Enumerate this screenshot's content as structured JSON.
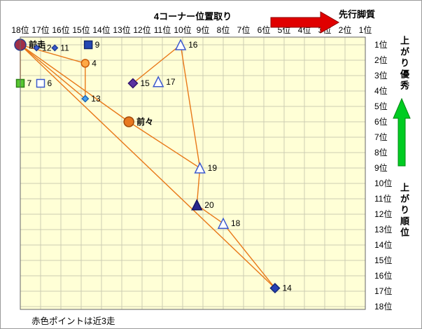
{
  "chart_data": {
    "type": "scatter",
    "title": "4コーナー位置取り",
    "x_labels": [
      "18位",
      "17位",
      "16位",
      "15位",
      "14位",
      "13位",
      "12位",
      "11位",
      "10位",
      "9位",
      "8位",
      "7位",
      "6位",
      "5位",
      "4位",
      "3位",
      "2位",
      "1位"
    ],
    "y_labels": [
      "1位",
      "2位",
      "3位",
      "4位",
      "5位",
      "6位",
      "7位",
      "8位",
      "9位",
      "10位",
      "11位",
      "12位",
      "13位",
      "14位",
      "15位",
      "16位",
      "17位",
      "18位"
    ],
    "x_range_note": "corner position 18位(left) to 1位(right)",
    "y_range_note": "agari rank 1位(top) to 18位(bottom)",
    "grid": true,
    "points": [
      {
        "id": "zenso",
        "label": "前走",
        "pos": 18,
        "rank": 1,
        "shape": "circle",
        "fill": "#A03048",
        "stroke": "#283C8C",
        "size": 8,
        "bold": true
      },
      {
        "id": "h12",
        "label": "12",
        "pos": 17.2,
        "rank": 1.2,
        "shape": "diamond",
        "fill": "#3C5ACD",
        "stroke": "#1E3C96",
        "size": 4
      },
      {
        "id": "h11",
        "label": "11",
        "pos": 16.3,
        "rank": 1.2,
        "shape": "diamond",
        "fill": "#3C5ACD",
        "stroke": "#1E3C96",
        "size": 4
      },
      {
        "id": "h9",
        "label": "9",
        "pos": 14.65,
        "rank": 1,
        "shape": "square",
        "fill": "#2346B4",
        "stroke": "#14286E",
        "size": 5.5
      },
      {
        "id": "h4",
        "label": "4",
        "pos": 14.8,
        "rank": 2.2,
        "shape": "circle",
        "fill": "#FFA845",
        "stroke": "#C85A0A",
        "size": 5.5
      },
      {
        "id": "h7",
        "label": "7",
        "pos": 18,
        "rank": 3.5,
        "shape": "square",
        "fill": "#57C832",
        "stroke": "#2E8216",
        "size": 5.5
      },
      {
        "id": "h6",
        "label": "6",
        "pos": 17,
        "rank": 3.5,
        "shape": "square_open",
        "fill": "#FFFFFF",
        "stroke": "#3C5ACD",
        "size": 5.5
      },
      {
        "id": "h15",
        "label": "15",
        "pos": 12.45,
        "rank": 3.5,
        "shape": "diamond",
        "fill": "#5A32A0",
        "stroke": "#32146E",
        "size": 6.5
      },
      {
        "id": "h17",
        "label": "17",
        "pos": 11.2,
        "rank": 3.4,
        "shape": "triangle_open",
        "fill": "#FFFFFF",
        "stroke": "#3C5ACD",
        "size": 7
      },
      {
        "id": "h16",
        "label": "16",
        "pos": 10.1,
        "rank": 1,
        "shape": "triangle_open",
        "fill": "#FFFFFF",
        "stroke": "#3C5ACD",
        "size": 7
      },
      {
        "id": "h13",
        "label": "13",
        "pos": 14.8,
        "rank": 4.5,
        "shape": "diamond",
        "fill": "#46A0F0",
        "stroke": "#1E64B4",
        "size": 4.5
      },
      {
        "id": "zenzen",
        "label": "前々",
        "pos": 12.65,
        "rank": 6,
        "shape": "circle",
        "fill": "#E87820",
        "stroke": "#A04A0A",
        "size": 7,
        "bold": true
      },
      {
        "id": "h19",
        "label": "19",
        "pos": 9.15,
        "rank": 9,
        "shape": "triangle_open",
        "fill": "#FFFFFF",
        "stroke": "#3C5ACD",
        "size": 7
      },
      {
        "id": "h20",
        "label": "20",
        "pos": 9.3,
        "rank": 11.4,
        "shape": "triangle",
        "fill": "#28288C",
        "stroke": "#141464",
        "size": 7
      },
      {
        "id": "h18",
        "label": "18",
        "pos": 8,
        "rank": 12.6,
        "shape": "triangle_open",
        "fill": "#FFFFFF",
        "stroke": "#3C5ACD",
        "size": 7
      },
      {
        "id": "h14",
        "label": "14",
        "pos": 5.45,
        "rank": 16.8,
        "shape": "diamond",
        "fill": "#2841B4",
        "stroke": "#142878",
        "size": 6.5
      }
    ],
    "segments": [
      [
        "zenso",
        "h7"
      ],
      [
        "zenso",
        "h4"
      ],
      [
        "zenso",
        "h13"
      ],
      [
        "zenso",
        "zenzen"
      ],
      [
        "zenso",
        "h14"
      ],
      [
        "h4",
        "h13"
      ],
      [
        "zenzen",
        "h19"
      ],
      [
        "h19",
        "h20"
      ],
      [
        "h20",
        "h18"
      ],
      [
        "h18",
        "h14"
      ],
      [
        "h15",
        "h16"
      ],
      [
        "h16",
        "h19"
      ]
    ]
  },
  "annotations": {
    "front_label": "先行脚質",
    "right_top_label": "上がり優秀",
    "right_bottom_label": "上がり順位",
    "footnote": "赤色ポイントは近3走"
  },
  "colors": {
    "plot_bg": "#FFFFD6",
    "grid": "#CCCCB3",
    "plot_border": "#666666",
    "line": "#E87818",
    "red_arrow": "#E00000",
    "red_arrow_edge": "#8B0000",
    "green_arrow": "#00CC22",
    "green_arrow_edge": "#008811"
  }
}
